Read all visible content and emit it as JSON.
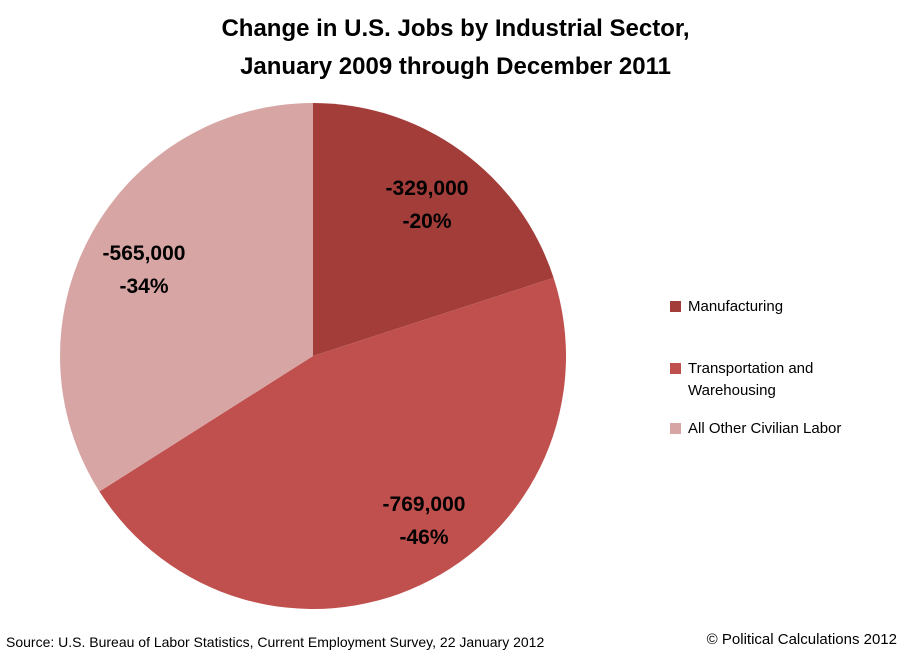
{
  "title": {
    "line1": "Change in U.S. Jobs by Industrial Sector,",
    "line2": "January 2009 through December 2011"
  },
  "chart_data": {
    "type": "pie",
    "title": "Change in U.S. Jobs by Industrial Sector, January 2009 through December 2011",
    "start_angle_deg": 0,
    "direction": "clockwise",
    "legend_position": "right",
    "slices": [
      {
        "label": "Manufacturing",
        "value": -329000,
        "percent": -20,
        "display_value": "-329,000",
        "display_percent": "-20%",
        "color": "#A23D3A"
      },
      {
        "label": "Transportation and Warehousing",
        "value": -769000,
        "percent": -46,
        "display_value": "-769,000",
        "display_percent": "-46%",
        "color": "#C0504D"
      },
      {
        "label": "All Other Civilian Labor",
        "value": -565000,
        "percent": -34,
        "display_value": "-565,000",
        "display_percent": "-34%",
        "color": "#D7A5A3"
      }
    ]
  },
  "legend": {
    "items": [
      {
        "label": "Manufacturing",
        "color": "#A23D3A"
      },
      {
        "label": "Transportation and Warehousing",
        "color": "#C0504D"
      },
      {
        "label": "All Other Civilian Labor",
        "color": "#D7A5A3"
      }
    ]
  },
  "footer": {
    "source": "Source: U.S. Bureau of Labor Statistics, Current Employment Survey, 22 January 2012",
    "copyright": "© Political Calculations 2012"
  }
}
